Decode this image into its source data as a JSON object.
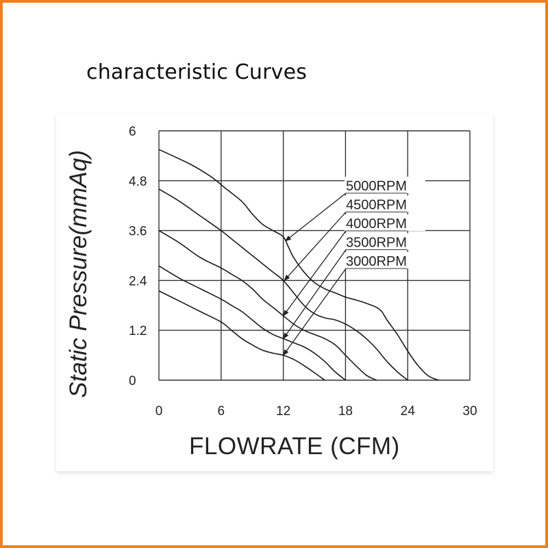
{
  "heading": "characteristic Curves",
  "chart_data": {
    "type": "line",
    "title": "",
    "xlabel": "FLOWRATE (CFM)",
    "ylabel": "Static  Pressure(mmAq)",
    "xlim": [
      0,
      30
    ],
    "ylim": [
      0,
      6
    ],
    "xticks": [
      "0",
      "6",
      "12",
      "18",
      "24",
      "30"
    ],
    "yticks": [
      "0",
      "1.2",
      "2.4",
      "3.6",
      "4.8",
      "6"
    ],
    "grid": true,
    "legend_position": "right, with arrows pointing to curves",
    "series": [
      {
        "name": "5000RPM",
        "x": [
          0,
          3,
          5,
          6.5,
          8,
          9,
          10,
          11,
          12,
          12.5,
          13,
          14,
          15,
          16,
          17,
          18,
          19,
          20,
          21,
          21.5,
          22,
          23,
          24,
          25,
          26,
          27
        ],
        "y": [
          5.55,
          5.2,
          4.9,
          4.6,
          4.3,
          4.0,
          3.75,
          3.6,
          3.45,
          3.2,
          2.95,
          2.6,
          2.35,
          2.2,
          2.1,
          2.0,
          1.93,
          1.85,
          1.75,
          1.65,
          1.45,
          1.1,
          0.7,
          0.35,
          0.1,
          0
        ]
      },
      {
        "name": "4500RPM",
        "x": [
          0,
          2,
          4,
          6,
          7,
          8,
          9,
          10,
          11,
          12,
          13,
          14,
          15,
          16,
          17,
          18,
          19,
          20,
          21,
          22,
          23,
          24
        ],
        "y": [
          4.6,
          4.3,
          3.95,
          3.6,
          3.4,
          3.2,
          3.0,
          2.8,
          2.6,
          2.4,
          2.1,
          1.8,
          1.6,
          1.5,
          1.45,
          1.35,
          1.2,
          1.0,
          0.75,
          0.45,
          0.2,
          0
        ]
      },
      {
        "name": "4000RPM",
        "x": [
          0,
          2,
          4,
          6,
          7,
          8,
          9,
          10,
          11,
          12,
          13,
          14,
          15,
          16,
          17,
          18,
          19,
          20,
          21
        ],
        "y": [
          3.6,
          3.3,
          2.95,
          2.7,
          2.55,
          2.4,
          2.2,
          1.95,
          1.75,
          1.55,
          1.35,
          1.2,
          1.1,
          1.0,
          0.85,
          0.6,
          0.35,
          0.12,
          0
        ]
      },
      {
        "name": "3500RPM",
        "x": [
          0,
          2,
          4,
          6,
          7,
          8,
          9,
          10,
          11,
          12,
          13,
          14,
          15,
          16,
          17,
          18
        ],
        "y": [
          2.75,
          2.45,
          2.2,
          1.95,
          1.8,
          1.65,
          1.45,
          1.25,
          1.1,
          1.0,
          0.9,
          0.8,
          0.65,
          0.45,
          0.2,
          0
        ]
      },
      {
        "name": "3000RPM",
        "x": [
          0,
          2,
          4,
          6,
          7,
          8,
          9,
          10,
          11,
          12,
          13,
          14,
          15,
          16
        ],
        "y": [
          2.15,
          1.9,
          1.65,
          1.4,
          1.2,
          1.0,
          0.85,
          0.72,
          0.65,
          0.6,
          0.5,
          0.35,
          0.18,
          0
        ]
      }
    ],
    "annotations": [
      {
        "label": "5000RPM",
        "points_to": [
          12.2,
          3.35
        ]
      },
      {
        "label": "4500RPM",
        "points_to": [
          12.1,
          2.4
        ]
      },
      {
        "label": "4000RPM",
        "points_to": [
          12.0,
          1.55
        ]
      },
      {
        "label": "3500RPM",
        "points_to": [
          12.0,
          1.0
        ]
      },
      {
        "label": "3000RPM",
        "points_to": [
          12.0,
          0.6
        ]
      }
    ]
  }
}
